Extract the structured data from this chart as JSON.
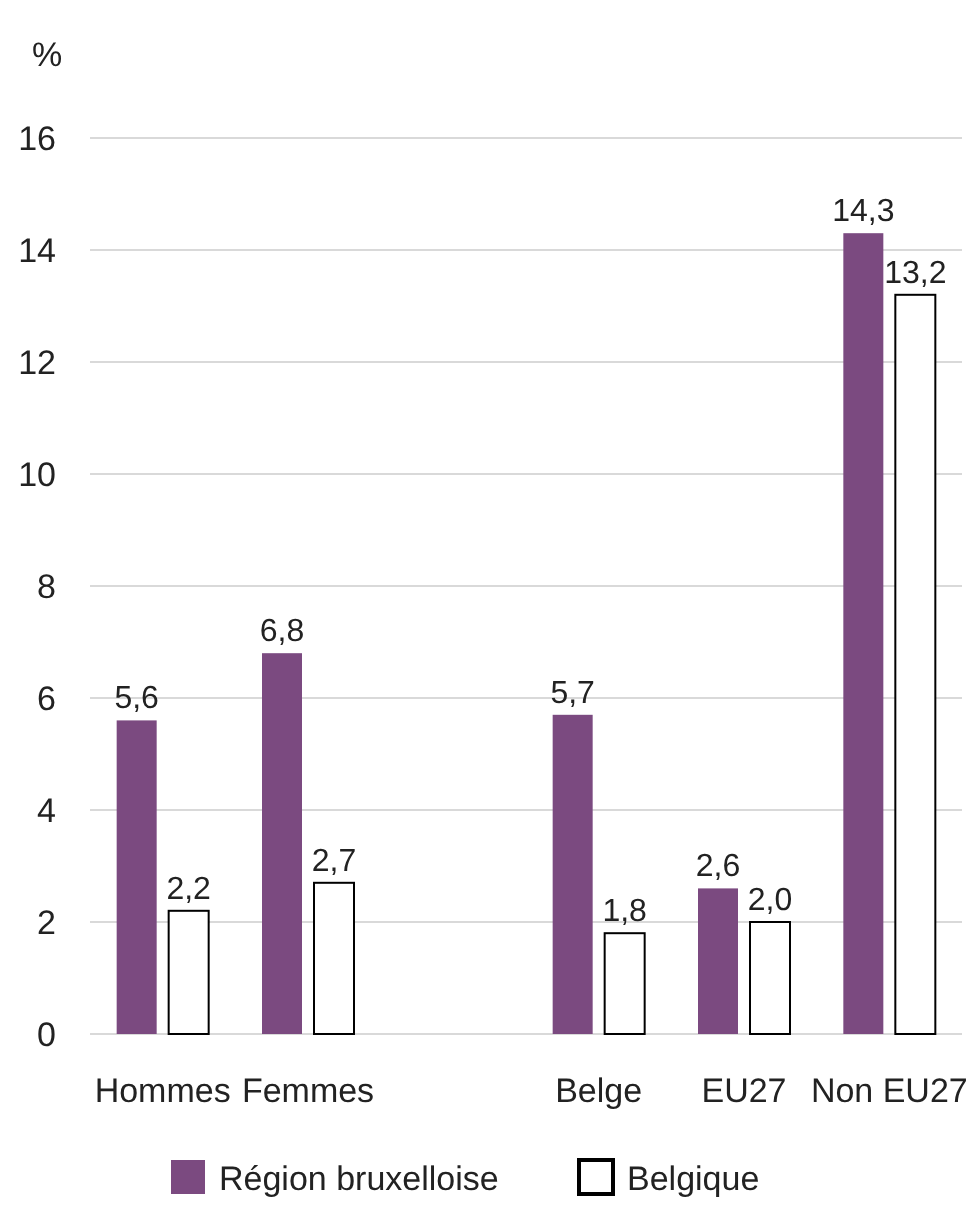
{
  "chart_data": {
    "type": "bar",
    "ylabel": "%",
    "categories": [
      "Hommes",
      "Femmes",
      null,
      "Belge",
      "EU27",
      "Non EU27"
    ],
    "series": [
      {
        "name": "Région bruxelloise",
        "color": "#7b4a80",
        "values": [
          5.6,
          6.8,
          null,
          5.7,
          2.6,
          14.3
        ],
        "value_labels": [
          "5,6",
          "6,8",
          null,
          "5,7",
          "2,6",
          "14,3"
        ]
      },
      {
        "name": "Belgique",
        "color": "#ffffff",
        "values": [
          2.2,
          2.7,
          null,
          1.8,
          2.0,
          13.2
        ],
        "value_labels": [
          "2,2",
          "2,7",
          null,
          "1,8",
          "2,0",
          "13,2"
        ]
      }
    ],
    "ylim": [
      0,
      16
    ],
    "yticks": [
      0,
      2,
      4,
      6,
      8,
      10,
      12,
      14,
      16
    ],
    "grid": "y",
    "legend": "bottom"
  }
}
